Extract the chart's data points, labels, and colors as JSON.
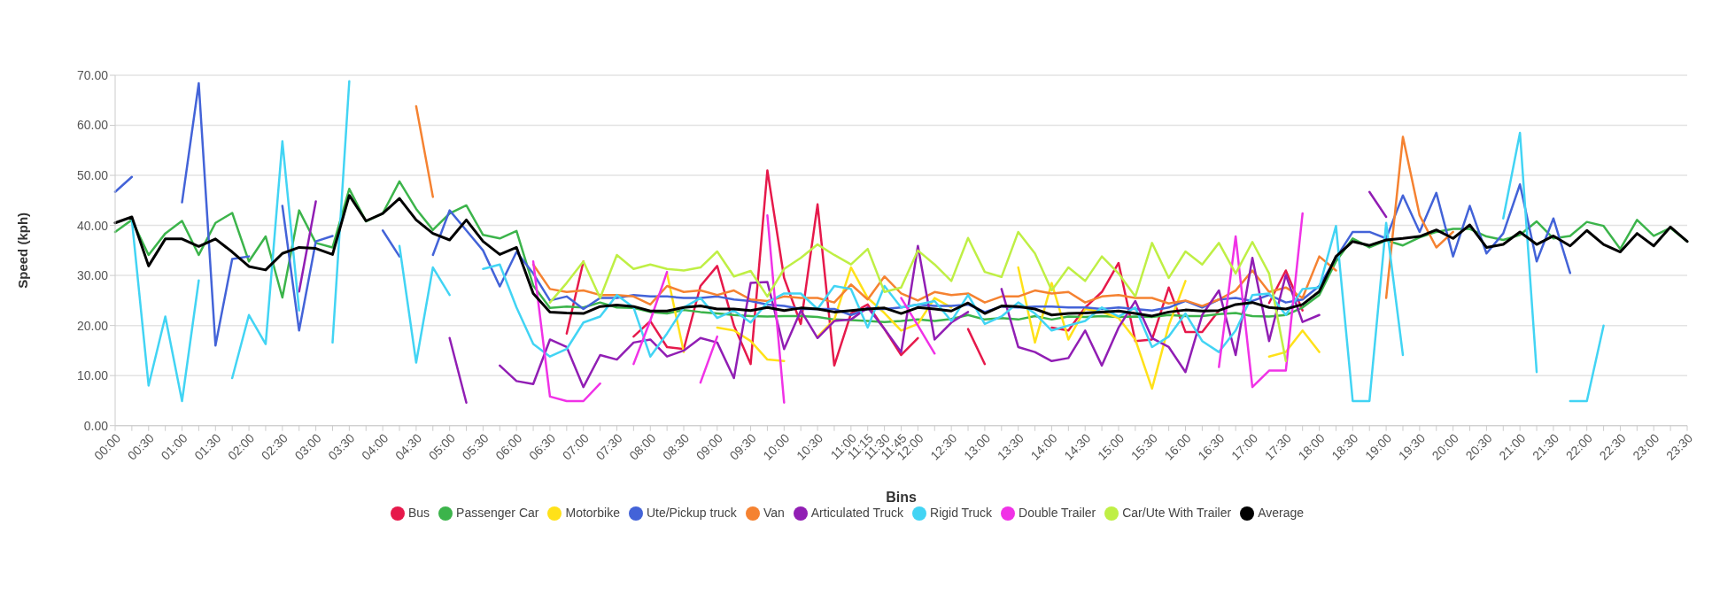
{
  "chart_data": {
    "type": "line",
    "xlabel": "Bins",
    "ylabel": "Speed (kph)",
    "categories": [
      "00:00",
      null,
      "00:30",
      null,
      "01:00",
      null,
      "01:30",
      null,
      "02:00",
      null,
      "02:30",
      null,
      "03:00",
      null,
      "03:30",
      null,
      "04:00",
      null,
      "04:30",
      null,
      "05:00",
      null,
      "05:30",
      null,
      "06:00",
      null,
      "06:30",
      null,
      "07:00",
      null,
      "07:30",
      null,
      "08:00",
      null,
      "08:30",
      null,
      "09:00",
      null,
      "09:30",
      null,
      "10:00",
      null,
      "10:30",
      null,
      "11:00",
      "11:15",
      "11:30",
      "11:45",
      "12:00",
      null,
      "12:30",
      null,
      "13:00",
      null,
      "13:30",
      null,
      "14:00",
      null,
      "14:30",
      null,
      "15:00",
      null,
      "15:30",
      null,
      "16:00",
      null,
      "16:30",
      null,
      "17:00",
      null,
      "17:30",
      null,
      "18:00",
      null,
      "18:30",
      null,
      "19:00",
      null,
      "19:30",
      null,
      "20:00",
      null,
      "20:30",
      null,
      "21:00",
      null,
      "21:30",
      null,
      "22:00",
      null,
      "22:30",
      null,
      "23:00",
      null,
      "23:30"
    ],
    "ylim": [
      0,
      70
    ],
    "yticks": [
      {
        "value": 0,
        "label": "0.00"
      },
      {
        "value": 10,
        "label": "10.00"
      },
      {
        "value": 20,
        "label": "20.00"
      },
      {
        "value": 30,
        "label": "30.00"
      },
      {
        "value": 40,
        "label": "40.00"
      },
      {
        "value": 50,
        "label": "50.00"
      },
      {
        "value": 60,
        "label": "60.00"
      },
      {
        "value": 70,
        "label": "70.00"
      }
    ],
    "grid": "y",
    "legend": "bottom",
    "series": [
      {
        "name": "Bus",
        "color": "#e6194b",
        "values": [
          null,
          null,
          null,
          null,
          null,
          null,
          null,
          null,
          null,
          null,
          null,
          null,
          null,
          null,
          null,
          null,
          null,
          null,
          null,
          null,
          null,
          null,
          null,
          null,
          null,
          null,
          null,
          18.4,
          32.8,
          null,
          null,
          17.8,
          20.9,
          15.7,
          15.3,
          27.9,
          31.9,
          20,
          12.3,
          51,
          29.5,
          20.3,
          44.2,
          12,
          22.4,
          24.2,
          19.3,
          14.1,
          17.5,
          null,
          null,
          19.3,
          12.3,
          null,
          null,
          null,
          19.6,
          19,
          23.6,
          26.7,
          32.5,
          16.9,
          17.2,
          27.6,
          18.7,
          18.7,
          23,
          null,
          null,
          24.5,
          31,
          23,
          null,
          null,
          null,
          null,
          null,
          null,
          null,
          null,
          null,
          null,
          null,
          null,
          null,
          null,
          null,
          null,
          null,
          null,
          null,
          null,
          null,
          null,
          null
        ]
      },
      {
        "name": "Passenger Car",
        "color": "#3cb44b",
        "values": [
          38.7,
          41.1,
          34.1,
          38.4,
          40.9,
          34.1,
          40.5,
          42.5,
          32.8,
          37.8,
          25.6,
          43,
          36.5,
          35.6,
          47.3,
          40.8,
          42.4,
          48.8,
          43.3,
          39.1,
          42.4,
          44,
          38.1,
          37.4,
          38.9,
          28,
          23.5,
          23.8,
          23.6,
          24.6,
          23.6,
          23.5,
          22.7,
          22.4,
          23.1,
          22.7,
          22.4,
          22.1,
          21.9,
          21.8,
          21.9,
          21.9,
          21.7,
          21.2,
          21.1,
          20.9,
          20.7,
          20.9,
          21.2,
          20.9,
          21.3,
          22.1,
          21.2,
          21.5,
          21.2,
          21.9,
          21.2,
          21.8,
          21.7,
          21.9,
          21.7,
          21.8,
          21.7,
          22.1,
          21.9,
          21.9,
          22.3,
          22.5,
          21.9,
          21.8,
          22.1,
          23.6,
          26.1,
          32.8,
          37.4,
          35.6,
          37,
          36,
          37.6,
          38.7,
          39.3,
          39.3,
          37.8,
          37.1,
          38.1,
          40.8,
          37.4,
          37.9,
          40.7,
          39.9,
          35.3,
          41.1,
          37.9,
          39.5,
          36.8
        ]
      },
      {
        "name": "Motorbike",
        "color": "#ffe119",
        "values": [
          null,
          null,
          null,
          null,
          null,
          null,
          null,
          null,
          null,
          null,
          null,
          null,
          null,
          null,
          null,
          null,
          null,
          null,
          null,
          null,
          null,
          null,
          null,
          null,
          null,
          null,
          null,
          null,
          null,
          null,
          null,
          null,
          null,
          30.4,
          14.7,
          null,
          19.6,
          19,
          16.9,
          13.2,
          12.9,
          null,
          17.8,
          21.2,
          31.6,
          25.5,
          22.5,
          19,
          20.3,
          25.5,
          23.6,
          null,
          null,
          null,
          31.6,
          16.6,
          28.5,
          17.2,
          23.3,
          22.7,
          21.5,
          17.2,
          7.4,
          20,
          28.9,
          null,
          null,
          null,
          null,
          13.8,
          14.7,
          19,
          14.7,
          null,
          null,
          null,
          null,
          null,
          null,
          null,
          null,
          null,
          null,
          null,
          null,
          null,
          null,
          null,
          null,
          null,
          null,
          null,
          null,
          null,
          null
        ]
      },
      {
        "name": "Ute/Pickup truck",
        "color": "#4363d8",
        "values": [
          46.7,
          49.7,
          null,
          null,
          44.6,
          68.4,
          16,
          33.3,
          33.8,
          null,
          43.9,
          19,
          36.8,
          37.9,
          null,
          null,
          39,
          33.8,
          null,
          34.1,
          43,
          39,
          35,
          27.8,
          34.7,
          30.4,
          25,
          25.8,
          23.3,
          25.5,
          25.5,
          26.1,
          25.8,
          25.8,
          25.5,
          25.5,
          25.8,
          25.2,
          24.9,
          24.2,
          23.9,
          23.3,
          23.3,
          23.3,
          22.1,
          23.3,
          23.3,
          23.6,
          24.2,
          23.9,
          23.9,
          24.2,
          22.7,
          23.8,
          23.6,
          23.8,
          23.8,
          23.6,
          23.6,
          23.3,
          23.6,
          23.3,
          23,
          23.6,
          24.9,
          23.6,
          25.2,
          25.5,
          24.9,
          26.1,
          24.6,
          25.2,
          27.9,
          33.5,
          38.7,
          38.7,
          37.4,
          46,
          38.7,
          46.5,
          33.8,
          43.9,
          34.4,
          38.4,
          48.2,
          32.8,
          41.4,
          30.5,
          null,
          null,
          null,
          null,
          null,
          null,
          null
        ]
      },
      {
        "name": "Van",
        "color": "#f58231",
        "values": [
          null,
          null,
          null,
          null,
          null,
          null,
          null,
          null,
          null,
          null,
          null,
          null,
          null,
          null,
          null,
          null,
          null,
          null,
          63.8,
          45.7,
          null,
          null,
          null,
          null,
          null,
          32.2,
          27.3,
          26.7,
          27,
          26.1,
          26.1,
          25.8,
          24.2,
          27.9,
          26.7,
          27,
          26.1,
          27,
          25.2,
          24.9,
          25.8,
          25.5,
          25.5,
          24.6,
          28.2,
          25.2,
          29.8,
          26.4,
          25,
          26.7,
          26.1,
          26.4,
          24.6,
          25.8,
          25.8,
          27,
          26.4,
          26.7,
          24.6,
          25.8,
          26.1,
          25.5,
          25.5,
          24.4,
          25,
          23.9,
          25.2,
          27,
          31,
          26.7,
          27.6,
          25.5,
          33.8,
          31,
          null,
          null,
          25.5,
          57.7,
          42,
          35.6,
          38.7,
          null,
          null,
          null,
          null,
          null,
          null,
          null,
          null,
          null,
          null,
          null,
          null,
          null,
          null
        ]
      },
      {
        "name": "Articulated Truck",
        "color": "#911eb4",
        "values": [
          null,
          null,
          null,
          null,
          null,
          null,
          null,
          null,
          null,
          null,
          null,
          26.8,
          44.8,
          null,
          null,
          null,
          null,
          null,
          null,
          null,
          17.5,
          4.6,
          null,
          12,
          8.9,
          8.3,
          17.2,
          15.7,
          7.7,
          14.1,
          13.2,
          16.6,
          17.2,
          13.8,
          15,
          17.5,
          16.6,
          9.5,
          28.5,
          28.7,
          15.3,
          23,
          17.5,
          20.9,
          21.2,
          23.6,
          19.3,
          14.7,
          35.9,
          17.2,
          20.6,
          22.7,
          null,
          27.3,
          15.7,
          14.7,
          12.9,
          13.5,
          19,
          12,
          19.6,
          24.9,
          17.5,
          15.7,
          10.7,
          22.1,
          27,
          14.1,
          33.5,
          16.9,
          30.1,
          20.7,
          22.1,
          null,
          null,
          46.7,
          41.7,
          null,
          null,
          null,
          null,
          null,
          null,
          null,
          null,
          null,
          null,
          null,
          null,
          null,
          null,
          null,
          null,
          null,
          null
        ]
      },
      {
        "name": "Rigid Truck",
        "color": "#42d4f4",
        "values": [
          null,
          41.1,
          8,
          21.8,
          4.9,
          29,
          null,
          9.5,
          22.1,
          16.3,
          56.8,
          23,
          null,
          16.6,
          68.8,
          null,
          null,
          35.9,
          12.6,
          31.6,
          26.1,
          null,
          31.3,
          32.2,
          23.6,
          16.3,
          13.8,
          15.3,
          20.6,
          21.8,
          26.1,
          23.6,
          13.8,
          18.4,
          23.6,
          25.5,
          21.5,
          23,
          20.6,
          24.6,
          26.4,
          26.4,
          23.3,
          27.9,
          27.3,
          19.6,
          27.9,
          23.6,
          24.2,
          24.9,
          20.9,
          26.1,
          20.3,
          21.8,
          24.6,
          22.4,
          19,
          20,
          20.9,
          23.6,
          21.8,
          23.6,
          15.7,
          17.8,
          22.4,
          16.9,
          14.7,
          19,
          26.1,
          26.4,
          22.1,
          27.3,
          27.6,
          39.9,
          4.9,
          4.9,
          40.5,
          14.1,
          null,
          null,
          null,
          null,
          null,
          41.4,
          58.5,
          10.7,
          null,
          4.9,
          4.9,
          20,
          null,
          null,
          null,
          null,
          null
        ]
      },
      {
        "name": "Double Trailer",
        "color": "#f032e6",
        "values": [
          null,
          null,
          null,
          null,
          null,
          null,
          null,
          null,
          null,
          null,
          null,
          null,
          null,
          null,
          null,
          null,
          null,
          null,
          null,
          null,
          null,
          null,
          null,
          null,
          null,
          32.8,
          5.8,
          4.9,
          4.9,
          8.4,
          null,
          12.3,
          21,
          30.7,
          null,
          8.6,
          17.8,
          null,
          null,
          42,
          4.6,
          null,
          null,
          null,
          null,
          null,
          null,
          25.5,
          20,
          14.4,
          null,
          null,
          null,
          null,
          null,
          null,
          null,
          null,
          null,
          null,
          null,
          null,
          null,
          null,
          null,
          null,
          11.7,
          37.8,
          7.7,
          11,
          11,
          42.4,
          null,
          null,
          null,
          null,
          null,
          null,
          null,
          null,
          null,
          null,
          null,
          null,
          null,
          null,
          null,
          null,
          null,
          null,
          null,
          null,
          null,
          null,
          null
        ]
      },
      {
        "name": "Car/Ute With Trailer",
        "color": "#bfef45",
        "values": [
          null,
          null,
          null,
          null,
          null,
          null,
          null,
          null,
          null,
          null,
          null,
          null,
          null,
          null,
          null,
          null,
          null,
          null,
          null,
          null,
          null,
          null,
          null,
          null,
          null,
          null,
          24.6,
          28.5,
          32.8,
          25.5,
          34.1,
          31.3,
          32.2,
          31.3,
          31,
          31.6,
          34.8,
          29.8,
          30.9,
          25.8,
          31.3,
          33.5,
          36.2,
          34.1,
          32.2,
          35.3,
          26.7,
          27.6,
          35,
          32.2,
          28.9,
          37.5,
          30.7,
          29.7,
          38.7,
          34.4,
          27,
          31.6,
          28.9,
          33.8,
          30.4,
          25.8,
          36.5,
          29.5,
          34.8,
          32.2,
          36.5,
          30.4,
          36.7,
          30.4,
          12.9,
          null,
          null,
          null,
          null,
          null,
          null,
          null,
          null,
          null,
          null,
          null,
          null,
          null,
          null,
          null,
          null,
          null,
          null,
          null,
          null,
          null,
          null,
          null,
          null
        ]
      },
      {
        "name": "Average",
        "color": "#000000",
        "values": [
          40.5,
          41.7,
          31.9,
          37.3,
          37.3,
          35.8,
          37.3,
          34.7,
          31.8,
          31.1,
          34.4,
          35.6,
          35.4,
          34.2,
          46,
          40.9,
          42.4,
          45.4,
          41.1,
          38.4,
          37.1,
          41.1,
          36.8,
          34.2,
          35.6,
          26.4,
          22.7,
          22.5,
          22.4,
          23.8,
          24.1,
          23.8,
          22.9,
          22.9,
          23.6,
          23.9,
          23.3,
          23.3,
          23,
          23.6,
          23,
          23.5,
          23.3,
          22.7,
          23,
          23.3,
          23.5,
          22.4,
          23.6,
          23.3,
          22.9,
          24.5,
          22.4,
          23.9,
          23.8,
          23.3,
          22.1,
          22.4,
          22.5,
          22.7,
          22.9,
          22.4,
          21.9,
          22.7,
          23.1,
          22.9,
          23,
          24.2,
          24.6,
          23.6,
          23.3,
          24.2,
          26.8,
          33.8,
          36.8,
          36,
          37.1,
          37.4,
          37.8,
          39.1,
          37.4,
          40.1,
          35.6,
          36.2,
          38.7,
          36.2,
          37.9,
          35.9,
          39,
          36.2,
          34.7,
          38.4,
          35.9,
          39.7,
          36.8
        ]
      }
    ]
  }
}
